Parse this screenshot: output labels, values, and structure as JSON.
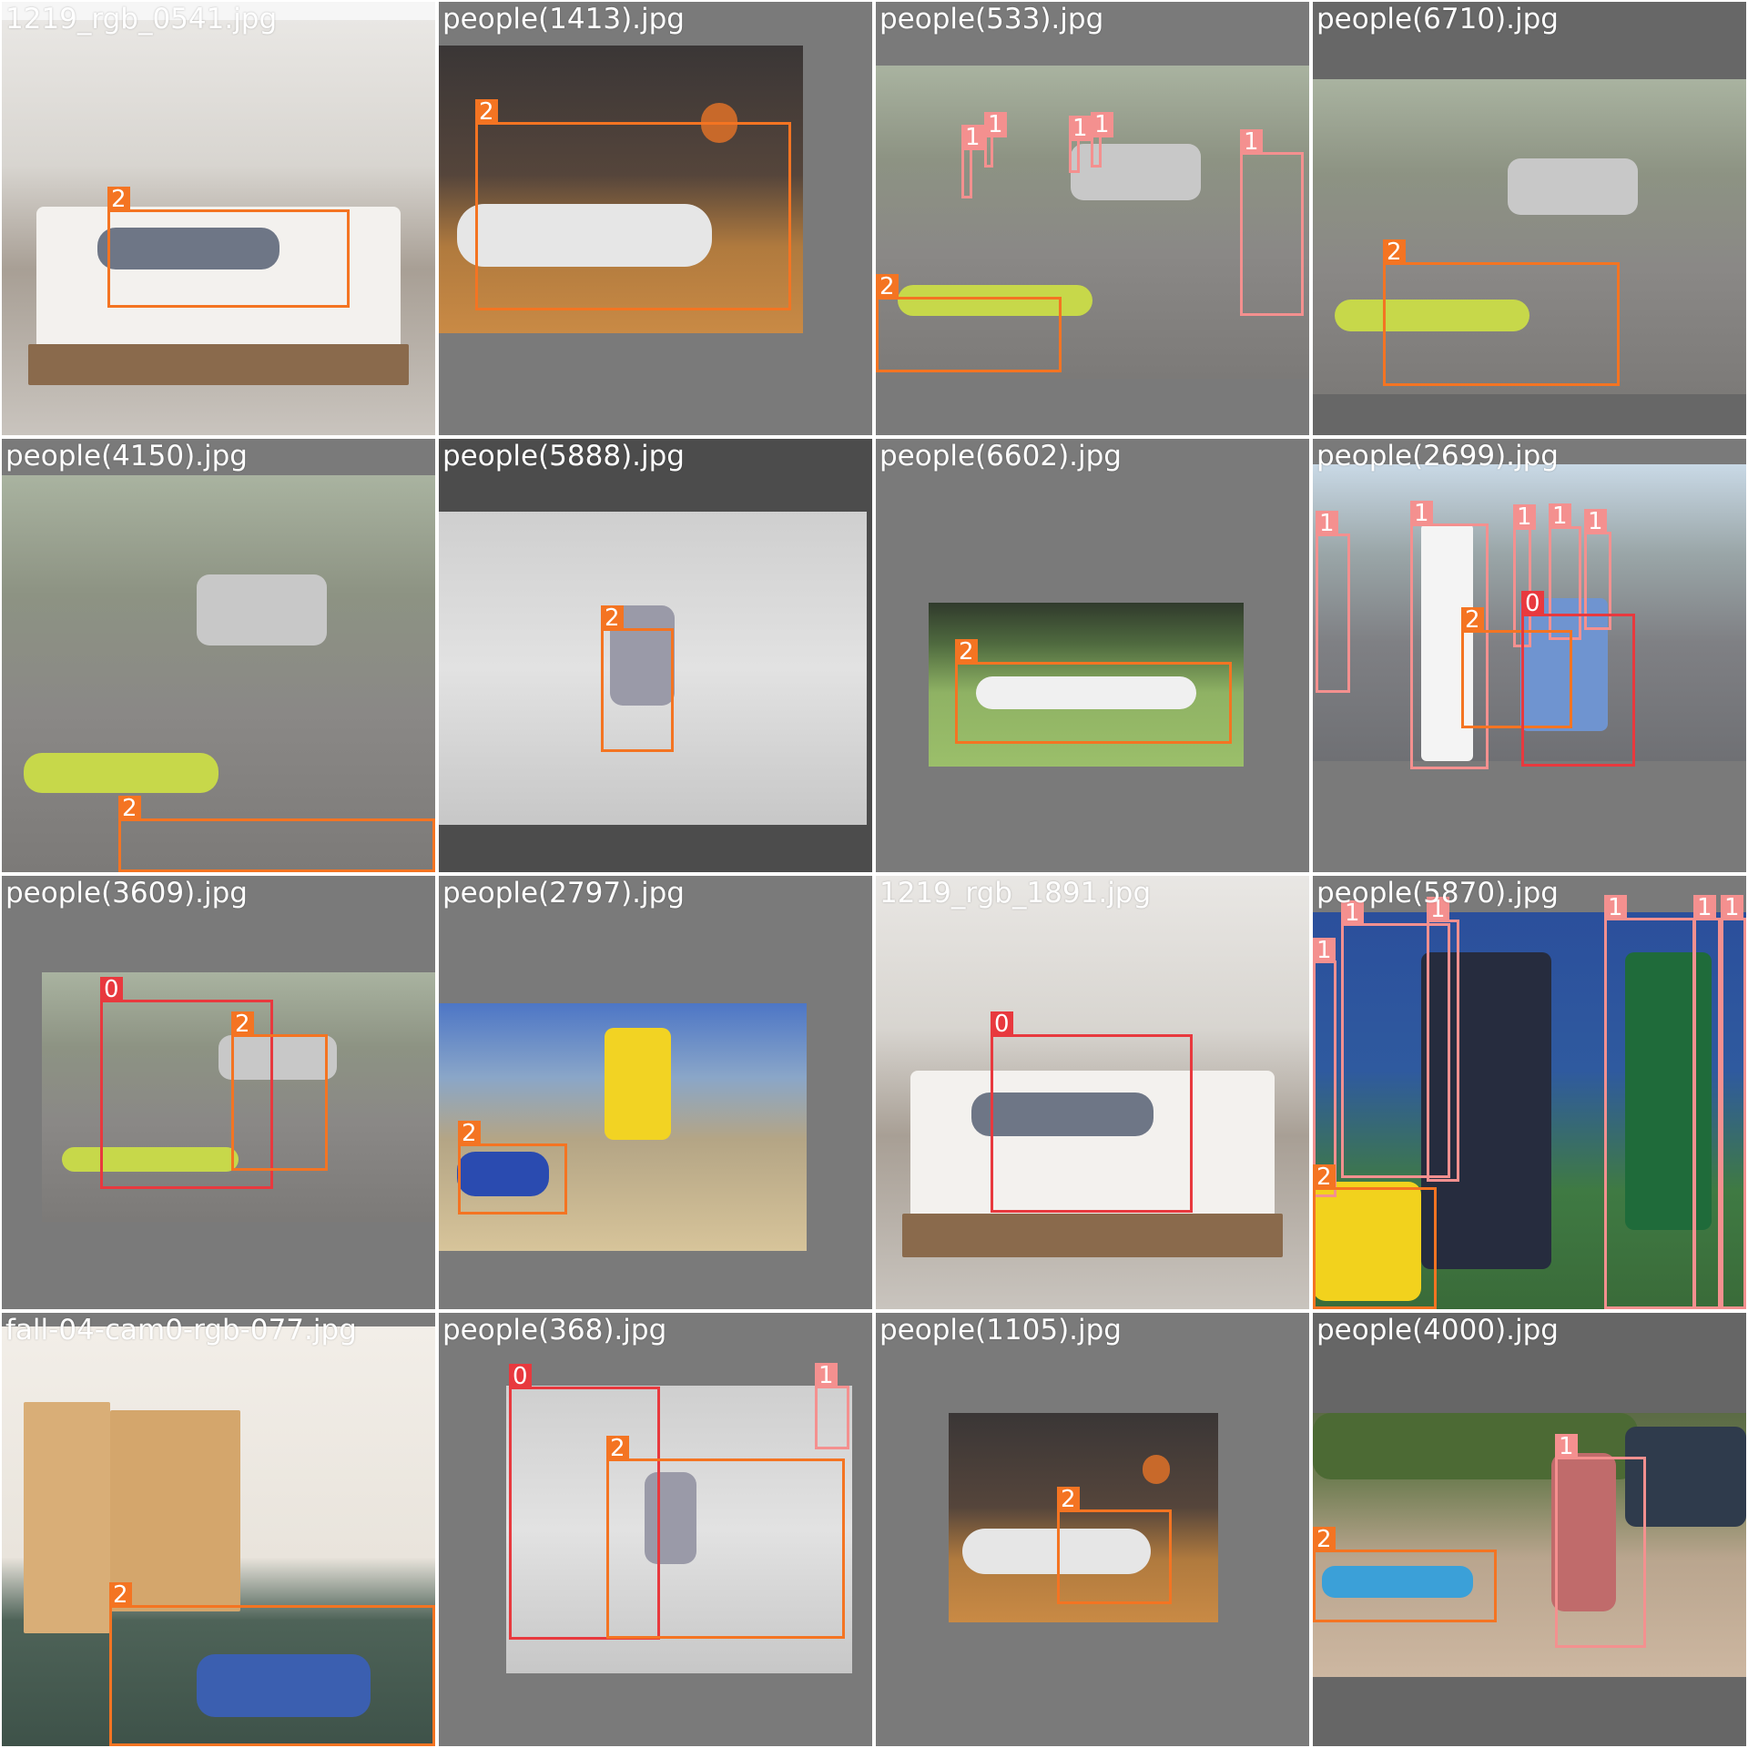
{
  "figure": {
    "class_colors": {
      "0": "#e8393e",
      "1": "#f4908f",
      "2": "#f47422"
    },
    "tiles": [
      {
        "filename": "1219_rgb_0541.jpg",
        "scene": "bedroom",
        "detections": [
          {
            "label": "2"
          }
        ]
      },
      {
        "filename": "people(1413).jpg",
        "scene": "basketball",
        "detections": [
          {
            "label": "2"
          }
        ]
      },
      {
        "filename": "people(533).jpg",
        "scene": "street",
        "detections": [
          {
            "label": "1"
          },
          {
            "label": "1"
          },
          {
            "label": "1"
          },
          {
            "label": "1"
          },
          {
            "label": "1"
          },
          {
            "label": "2"
          }
        ]
      },
      {
        "filename": "people(6710).jpg",
        "scene": "street",
        "detections": [
          {
            "label": "2"
          }
        ]
      },
      {
        "filename": "people(4150).jpg",
        "scene": "street",
        "detections": [
          {
            "label": "2"
          }
        ]
      },
      {
        "filename": "people(5888).jpg",
        "scene": "snow",
        "detections": [
          {
            "label": "2"
          }
        ]
      },
      {
        "filename": "people(6602).jpg",
        "scene": "field",
        "detections": [
          {
            "label": "2"
          }
        ]
      },
      {
        "filename": "people(2699).jpg",
        "scene": "road",
        "detections": [
          {
            "label": "1"
          },
          {
            "label": "1"
          },
          {
            "label": "1"
          },
          {
            "label": "1"
          },
          {
            "label": "1"
          },
          {
            "label": "2"
          },
          {
            "label": "0"
          }
        ]
      },
      {
        "filename": "people(3609).jpg",
        "scene": "street",
        "detections": [
          {
            "label": "0"
          },
          {
            "label": "2"
          }
        ]
      },
      {
        "filename": "people(2797).jpg",
        "scene": "beach",
        "detections": [
          {
            "label": "2"
          }
        ]
      },
      {
        "filename": "1219_rgb_1891.jpg",
        "scene": "bedroom",
        "detections": [
          {
            "label": "0"
          }
        ]
      },
      {
        "filename": "people(5870).jpg",
        "scene": "football",
        "detections": [
          {
            "label": "1"
          },
          {
            "label": "1"
          },
          {
            "label": "1"
          },
          {
            "label": "1"
          },
          {
            "label": "1"
          },
          {
            "label": "1"
          },
          {
            "label": "2"
          }
        ]
      },
      {
        "filename": "fall-04-cam0-rgb-077.jpg",
        "scene": "office",
        "detections": [
          {
            "label": "2"
          }
        ]
      },
      {
        "filename": "people(368).jpg",
        "scene": "snow",
        "detections": [
          {
            "label": "0"
          },
          {
            "label": "1"
          },
          {
            "label": "2"
          }
        ]
      },
      {
        "filename": "people(1105).jpg",
        "scene": "basketball",
        "detections": [
          {
            "label": "2"
          }
        ]
      },
      {
        "filename": "people(4000).jpg",
        "scene": "dirt",
        "detections": [
          {
            "label": "1"
          },
          {
            "label": "2"
          }
        ]
      }
    ]
  }
}
